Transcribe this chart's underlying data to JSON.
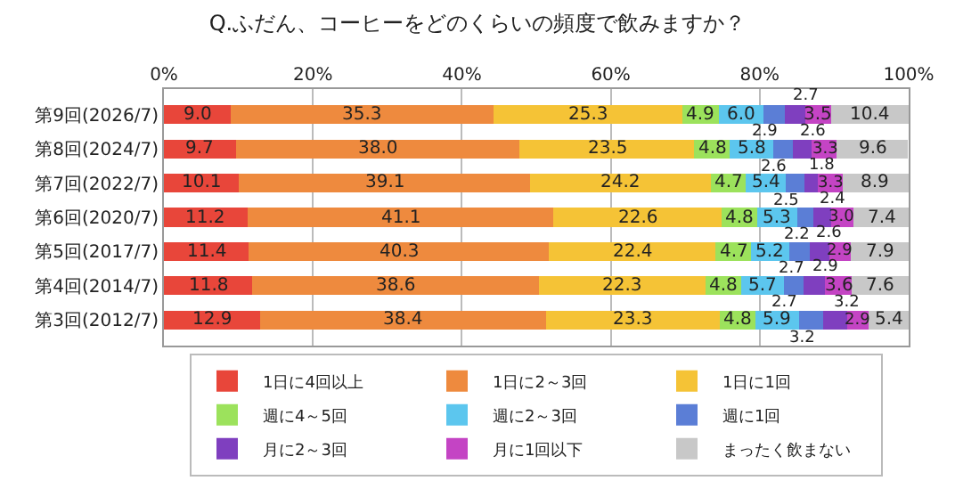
{
  "chart_data": {
    "type": "bar",
    "orientation": "horizontal",
    "stacked": true,
    "title": "Q.ふだん、コーヒーをどのくらいの頻度で飲みますか？",
    "categories": [
      "第9回(2026/7)",
      "第8回(2024/7)",
      "第7回(2022/7)",
      "第6回(2020/7)",
      "第5回(2017/7)",
      "第4回(2014/7)",
      "第3回(2012/7)"
    ],
    "series": [
      {
        "name": "1日に4回以上",
        "color": "#e8463a",
        "values": [
          9.0,
          9.7,
          10.1,
          11.2,
          11.4,
          11.8,
          12.9
        ],
        "value_labels": [
          "9.0",
          "9.7",
          "10.1",
          "11.2",
          "11.4",
          "11.8",
          "12.9"
        ]
      },
      {
        "name": "1日に2～3回",
        "color": "#ee8a3e",
        "values": [
          35.3,
          38.0,
          39.1,
          41.1,
          40.3,
          38.6,
          38.4
        ],
        "value_labels": [
          "35.3",
          "38.0",
          "39.1",
          "41.1",
          "40.3",
          "38.6",
          "38.4"
        ]
      },
      {
        "name": "1日に1回",
        "color": "#f5c336",
        "values": [
          25.3,
          23.5,
          24.2,
          22.6,
          22.4,
          22.3,
          23.3
        ],
        "value_labels": [
          "25.3",
          "23.5",
          "24.2",
          "22.6",
          "22.4",
          "22.3",
          "23.3"
        ]
      },
      {
        "name": "週に4～5回",
        "color": "#9ce25c",
        "values": [
          4.9,
          4.8,
          4.7,
          4.8,
          4.7,
          4.8,
          4.8
        ],
        "value_labels": [
          "4.9",
          "4.8",
          "4.7",
          "4.8",
          "4.7",
          "4.8",
          "4.8"
        ]
      },
      {
        "name": "週に2～3回",
        "color": "#5cc6ee",
        "values": [
          6.0,
          5.8,
          5.4,
          5.3,
          5.2,
          5.7,
          5.9
        ],
        "value_labels": [
          "6.0",
          "5.8",
          "5.4",
          "5.3",
          "5.2",
          "5.7",
          "5.9"
        ]
      },
      {
        "name": "週に1回",
        "color": "#5b7ed6",
        "values": [
          2.9,
          2.6,
          2.5,
          2.2,
          2.7,
          2.7,
          3.2
        ],
        "value_labels": [
          "2.9",
          "2.6",
          "2.5",
          "2.2",
          "2.7",
          "2.7",
          "3.2"
        ]
      },
      {
        "name": "月に2～3回",
        "color": "#7f3fbf",
        "values": [
          2.7,
          2.6,
          1.8,
          2.4,
          2.6,
          2.9,
          3.2
        ],
        "value_labels": [
          "2.7",
          "2.6",
          "1.8",
          "2.4",
          "2.6",
          "2.9",
          "3.2"
        ]
      },
      {
        "name": "月に1回以下",
        "color": "#c444c4",
        "values": [
          3.5,
          3.3,
          3.3,
          3.0,
          2.9,
          3.6,
          2.9
        ],
        "value_labels": [
          "3.5",
          "3.3",
          "3.3",
          "3.0",
          "2.9",
          "3.6",
          "2.9"
        ]
      },
      {
        "name": "まったく飲まない",
        "color": "#c8c8c8",
        "values": [
          10.4,
          9.6,
          8.9,
          7.4,
          7.9,
          7.6,
          5.4
        ],
        "value_labels": [
          "10.4",
          "9.6",
          "8.9",
          "7.4",
          "7.9",
          "7.6",
          "5.4"
        ]
      }
    ],
    "xlim": [
      0,
      100
    ],
    "xticks": [
      {
        "value": 0,
        "label": "0%"
      },
      {
        "value": 20,
        "label": "20%"
      },
      {
        "value": 40,
        "label": "40%"
      },
      {
        "value": 60,
        "label": "60%"
      },
      {
        "value": 80,
        "label": "80%"
      },
      {
        "value": 100,
        "label": "100%"
      }
    ],
    "grid": "x",
    "legend": "bottom"
  }
}
